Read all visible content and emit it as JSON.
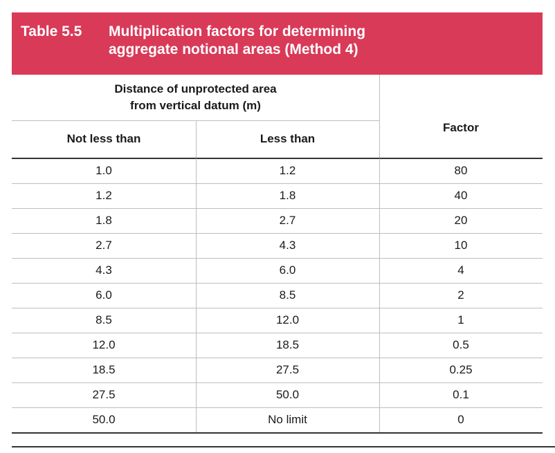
{
  "table": {
    "number": "Table 5.5",
    "caption_line1": "Multiplication factors for determining",
    "caption_line2": "aggregate notional areas (Method 4)",
    "header": {
      "group_line1": "Distance of unprotected area",
      "group_line2": "from vertical datum (m)",
      "col_not_less_than": "Not less than",
      "col_less_than": "Less than",
      "col_factor": "Factor"
    },
    "rows": [
      {
        "not_less_than": "1.0",
        "less_than": "1.2",
        "factor": "80"
      },
      {
        "not_less_than": "1.2",
        "less_than": "1.8",
        "factor": "40"
      },
      {
        "not_less_than": "1.8",
        "less_than": "2.7",
        "factor": "20"
      },
      {
        "not_less_than": "2.7",
        "less_than": "4.3",
        "factor": "10"
      },
      {
        "not_less_than": "4.3",
        "less_than": "6.0",
        "factor": "4"
      },
      {
        "not_less_than": "6.0",
        "less_than": "8.5",
        "factor": "2"
      },
      {
        "not_less_than": "8.5",
        "less_than": "12.0",
        "factor": "1"
      },
      {
        "not_less_than": "12.0",
        "less_than": "18.5",
        "factor": "0.5"
      },
      {
        "not_less_than": "18.5",
        "less_than": "27.5",
        "factor": "0.25"
      },
      {
        "not_less_than": "27.5",
        "less_than": "50.0",
        "factor": "0.1"
      },
      {
        "not_less_than": "50.0",
        "less_than": "No limit",
        "factor": "0"
      }
    ]
  }
}
